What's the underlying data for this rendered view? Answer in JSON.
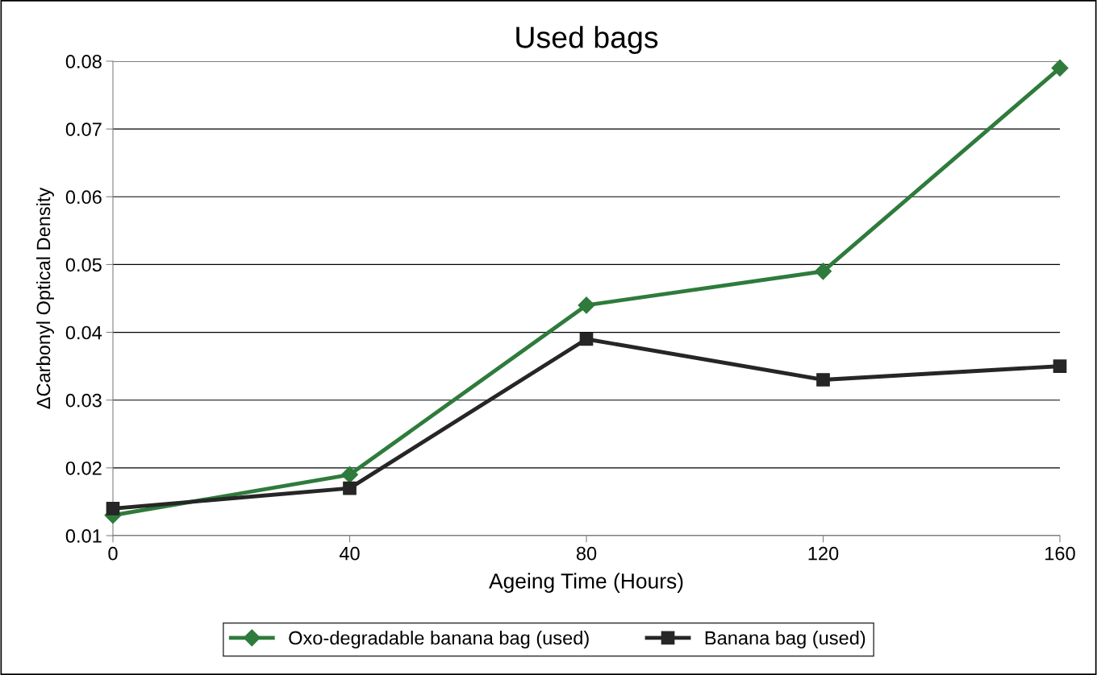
{
  "chart_data": {
    "type": "line",
    "title": "Used bags",
    "xlabel": "Ageing Time (Hours)",
    "ylabel": "ΔCarbonyl Optical Density",
    "x": [
      0,
      40,
      80,
      120,
      160
    ],
    "series": [
      {
        "name": "Oxo-degradable banana bag (used)",
        "color": "#2e7b3c",
        "marker": "diamond",
        "values": [
          0.013,
          0.019,
          0.044,
          0.049,
          0.079
        ]
      },
      {
        "name": "Banana bag (used)",
        "color": "#262626",
        "marker": "square",
        "values": [
          0.014,
          0.017,
          0.039,
          0.033,
          0.035
        ]
      }
    ],
    "xlim": [
      0,
      160
    ],
    "xticks": [
      0,
      40,
      80,
      120,
      160
    ],
    "ylim": [
      0.01,
      0.08
    ],
    "yticks": [
      0.01,
      0.02,
      0.03,
      0.04,
      0.05,
      0.06,
      0.07,
      0.08
    ],
    "grid": "y",
    "legend": "bottom",
    "line_style": "solid"
  }
}
